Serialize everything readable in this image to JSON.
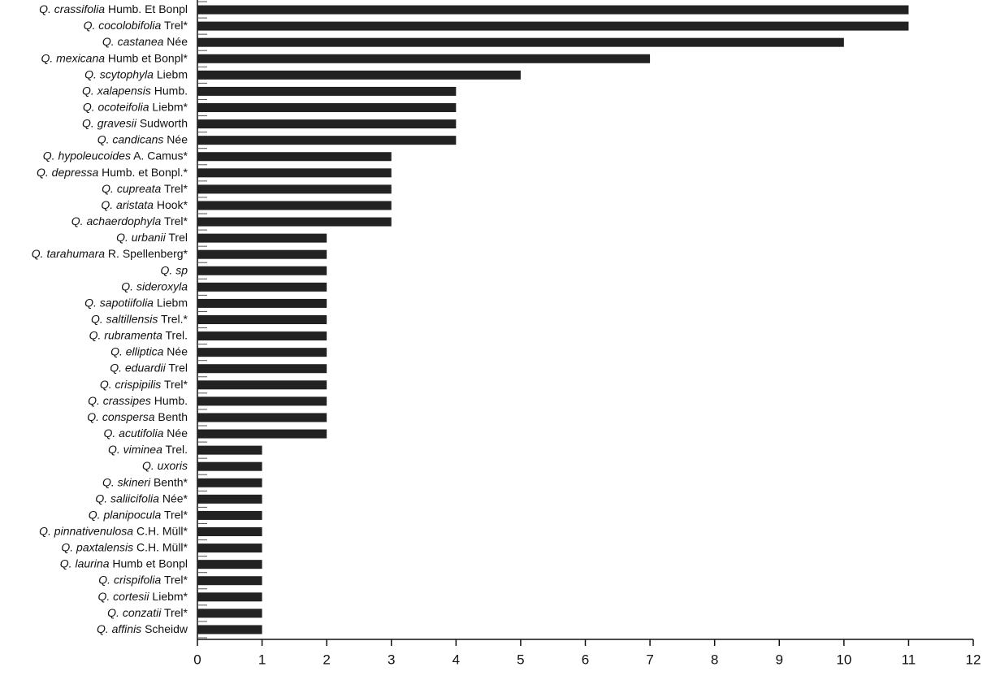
{
  "chart_data": {
    "type": "bar",
    "orientation": "horizontal",
    "categories": [
      "Q. crassifolia Humb. Et Bonpl",
      "Q. cocolobifolia Trel*",
      "Q. castanea Née",
      "Q. mexicana Humb et Bonpl*",
      "Q. scytophyla Liebm",
      "Q. xalapensis Humb.",
      "Q. ocoteifolia Liebm*",
      "Q. gravesii Sudworth",
      "Q. candicans Née",
      "Q. hypoleucoides A. Camus*",
      "Q. depressa Humb. et Bonpl.*",
      "Q. cupreata Trel*",
      "Q. aristata Hook*",
      "Q. achaerdophyla Trel*",
      "Q. urbanii Trel",
      "Q. tarahumara R. Spellenberg*",
      "Q. sp",
      "Q. sideroxyla",
      "Q. sapotiifolia Liebm",
      "Q. saltillensis Trel.*",
      "Q. rubramenta Trel.",
      "Q. elliptica Née",
      "Q. eduardii Trel",
      "Q. crispipilis Trel*",
      "Q. crassipes Humb.",
      "Q. conspersa Benth",
      "Q. acutifolia Née",
      "Q. viminea Trel.",
      "Q. uxoris",
      "Q. skineri Benth*",
      "Q. saliicifolia Née*",
      "Q. planipocula Trel*",
      "Q. pinnativenulosa C.H. Müll*",
      "Q. paxtalensis C.H. Müll*",
      "Q. laurina Humb et Bonpl",
      "Q. crispifolia Trel*",
      "Q. cortesii Liebm*",
      "Q. conzatii Trel*",
      "Q. affinis Scheidw"
    ],
    "values": [
      11,
      11,
      10,
      7,
      5,
      4,
      4,
      4,
      4,
      3,
      3,
      3,
      3,
      3,
      2,
      2,
      2,
      2,
      2,
      2,
      2,
      2,
      2,
      2,
      2,
      2,
      2,
      1,
      1,
      1,
      1,
      1,
      1,
      1,
      1,
      1,
      1,
      1,
      1
    ],
    "color": "#222222",
    "xlim": [
      0,
      12
    ],
    "xticks": [
      0,
      1,
      2,
      3,
      4,
      5,
      6,
      7,
      8,
      9,
      10,
      11,
      12
    ]
  }
}
